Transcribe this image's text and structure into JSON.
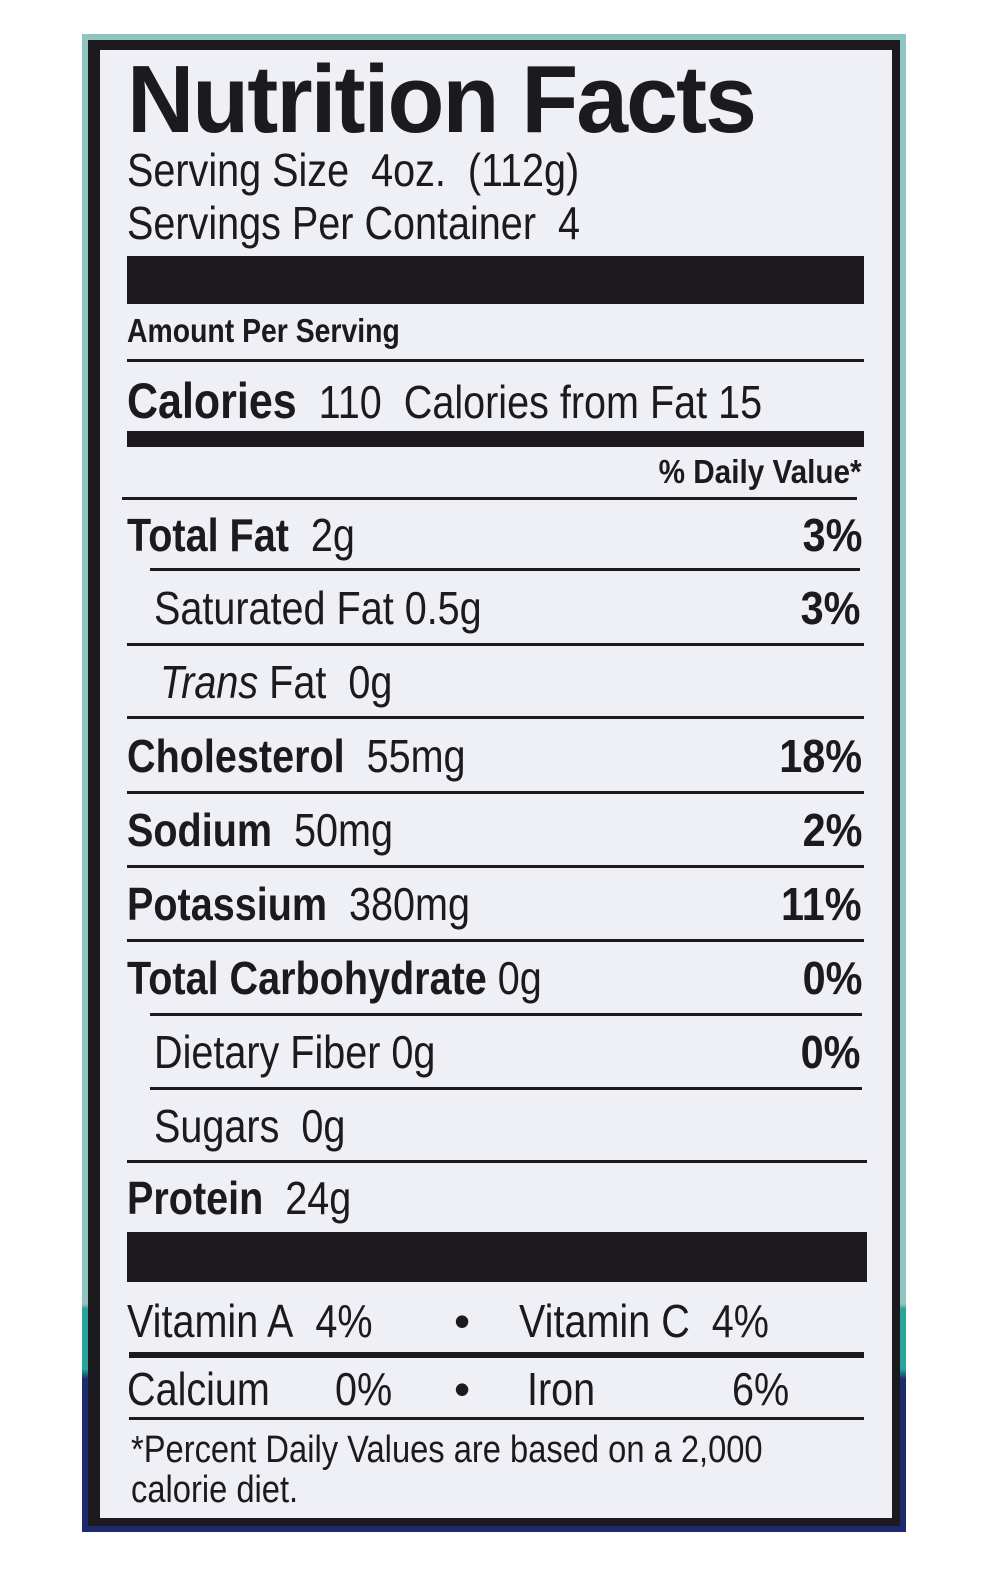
{
  "title": "Nutrition Facts",
  "serving_size": "Serving Size  4oz.  (112g)",
  "servings_per_container": "Servings Per Container  4",
  "amount_per_serving": "Amount Per Serving",
  "calories": {
    "label": "Calories",
    "value": "110",
    "from_fat": "Calories from Fat 15"
  },
  "daily_value_header": "% Daily Value*",
  "nutrients": [
    {
      "label": "Total Fat",
      "amount": "2g",
      "dv": "3%"
    },
    {
      "label": "Saturated Fat",
      "amount": "0.5g",
      "dv": "3%"
    },
    {
      "label": "Trans",
      "label2": "Fat",
      "amount": "0g",
      "dv": ""
    },
    {
      "label": "Cholesterol",
      "amount": "55mg",
      "dv": "18%"
    },
    {
      "label": "Sodium",
      "amount": "50mg",
      "dv": "2%"
    },
    {
      "label": "Potassium",
      "amount": "380mg",
      "dv": "11%"
    },
    {
      "label": "Total Carbohydrate",
      "amount": "0g",
      "dv": "0%"
    },
    {
      "label": "Dietary Fiber",
      "amount": "0g",
      "dv": "0%"
    },
    {
      "label": "Sugars",
      "amount": "0g",
      "dv": ""
    },
    {
      "label": "Protein",
      "amount": "24g",
      "dv": ""
    }
  ],
  "vitamins": [
    {
      "label": "Vitamin A",
      "dv": "4%"
    },
    {
      "label": "Vitamin C",
      "dv": "4%"
    },
    {
      "label": "Calcium",
      "dv": "0%"
    },
    {
      "label": "Iron",
      "dv": "6%"
    }
  ],
  "bullet": "•",
  "footnote_line1": "*Percent Daily Values are based on a 2,000",
  "footnote_line2": "calorie diet.",
  "colors": {
    "ink": "#1c1a1c",
    "panel": "#eef0f5",
    "teal": "#8fc4c0",
    "navy": "#1d2a6e"
  }
}
